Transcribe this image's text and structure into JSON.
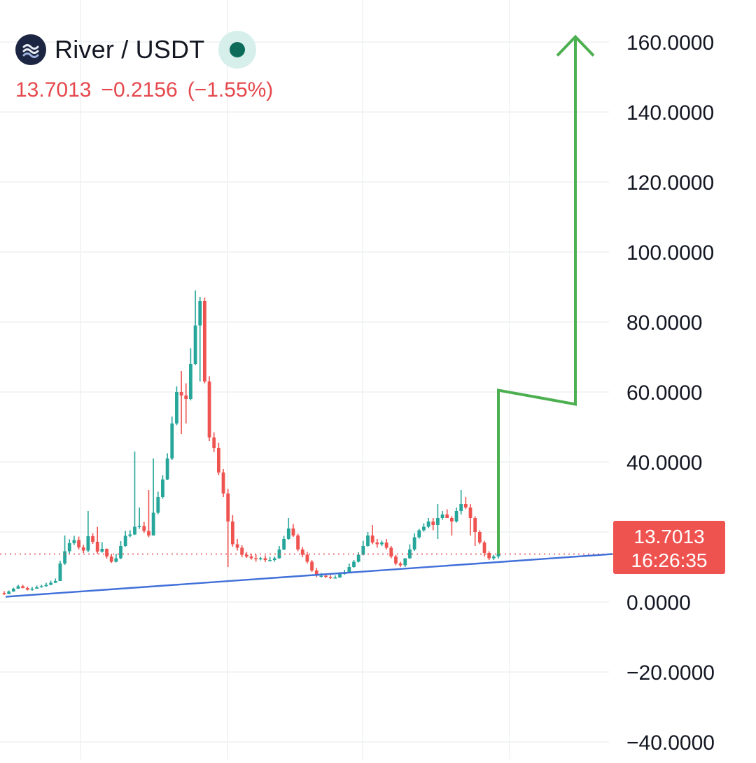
{
  "header": {
    "pair": "River / USDT",
    "price": "13.7013",
    "change": "−0.2156",
    "change_pct": "(−1.55%)"
  },
  "last_price_tag": {
    "price": "13.7013",
    "countdown": "16:26:35"
  },
  "colors": {
    "up": "#26a69a",
    "down": "#ef5350",
    "trendline": "#3f6fd8",
    "projection": "#4caf50",
    "price_line": "#e5484d",
    "grid": "#eef0f3",
    "status": "#0d6b5a",
    "logo_bg": "#1c2541"
  },
  "icons": {
    "logo": "river-wave-icon",
    "status": "market-status-dot-icon"
  },
  "chart_data": {
    "type": "candlestick",
    "title": "River / USDT",
    "ylim": [
      -45,
      168
    ],
    "yticks": [
      160,
      140,
      120,
      100,
      80,
      60,
      40,
      20,
      0,
      -20,
      -40
    ],
    "ytick_labels": [
      "160.0000",
      "140.0000",
      "120.0000",
      "100.0000",
      "80.0000",
      "60.0000",
      "40.0000",
      "20.0000",
      "0.0000",
      "−20.0000",
      "−40.0000"
    ],
    "grid": true,
    "last_price": 13.7013,
    "series": {
      "open": [
        2.6,
        2.3,
        3.0,
        3.8,
        4.5,
        4.0,
        3.5,
        3.8,
        4.2,
        4.5,
        4.9,
        5.5,
        6.0,
        11.0,
        14.5,
        16.8,
        17.7,
        15.6,
        14.7,
        18.8,
        17.2,
        14.4,
        15.2,
        13.0,
        11.5,
        12.5,
        16.0,
        18.9,
        19.3,
        21.5,
        21.7,
        20.3,
        19.0,
        25.5,
        30.0,
        35.0,
        41.0,
        51.0,
        60.0,
        59.0,
        58.0,
        68.0,
        79.0,
        86.0,
        63.0,
        47.0,
        44.0,
        37.0,
        31.0,
        23.0,
        16.5,
        15.5,
        13.5,
        13.0,
        12.5,
        12.2,
        12.5,
        12.0,
        12.0,
        12.5,
        15.0,
        18.0,
        21.0,
        19.0,
        15.0,
        13.5,
        11.5,
        9.0,
        7.5,
        7.5,
        7.2,
        7.0,
        7.0,
        8.0,
        8.5,
        10.0,
        11.5,
        13.5,
        16.0,
        19.0,
        17.0,
        16.5,
        17.0,
        15.5,
        13.0,
        11.0,
        10.5,
        12.5,
        15.0,
        18.5,
        20.5,
        21.5,
        23.0,
        22.0,
        24.0,
        25.0,
        24.0,
        23.0,
        26.0,
        28.0,
        27.0,
        24.0,
        20.0,
        17.0,
        14.0,
        12.5,
        13.0
      ],
      "close": [
        2.3,
        3.0,
        3.8,
        4.5,
        4.0,
        3.5,
        3.8,
        4.2,
        4.5,
        4.9,
        5.5,
        6.0,
        11.0,
        14.5,
        16.8,
        17.7,
        15.6,
        14.7,
        18.8,
        17.2,
        14.4,
        15.2,
        13.0,
        11.5,
        12.5,
        16.0,
        18.9,
        19.3,
        21.5,
        21.7,
        20.3,
        19.0,
        25.5,
        30.0,
        35.0,
        41.0,
        51.0,
        60.0,
        59.0,
        58.0,
        68.0,
        79.0,
        86.0,
        63.0,
        47.0,
        44.0,
        37.0,
        31.0,
        23.0,
        16.5,
        15.5,
        13.5,
        13.0,
        12.5,
        12.2,
        12.5,
        12.0,
        12.0,
        12.5,
        15.0,
        18.0,
        21.0,
        19.0,
        15.0,
        13.5,
        11.5,
        9.0,
        7.5,
        7.5,
        7.2,
        7.0,
        7.0,
        8.0,
        8.5,
        10.0,
        11.5,
        13.5,
        16.0,
        19.0,
        17.0,
        16.5,
        17.0,
        15.5,
        13.0,
        11.0,
        10.5,
        12.5,
        15.0,
        18.5,
        20.5,
        21.5,
        23.0,
        22.0,
        24.0,
        25.0,
        24.0,
        23.0,
        26.0,
        28.0,
        27.0,
        24.0,
        20.0,
        17.0,
        14.0,
        12.5,
        13.0,
        13.7
      ],
      "high": [
        3.1,
        3.3,
        4.1,
        4.9,
        4.9,
        4.4,
        4.3,
        4.7,
        4.9,
        5.5,
        6.1,
        6.7,
        11.8,
        19.0,
        17.9,
        18.9,
        18.7,
        16.3,
        26.0,
        19.6,
        21.5,
        17.1,
        15.3,
        13.8,
        13.8,
        17.4,
        20.3,
        20.5,
        43.0,
        27.0,
        22.9,
        32.0,
        41.0,
        31.5,
        36.2,
        42.5,
        53.0,
        61.6,
        66.0,
        62.5,
        72.5,
        89.0,
        87.2,
        87.0,
        64.5,
        48.5,
        45.5,
        38.0,
        32.3,
        24.8,
        18.0,
        16.2,
        14.3,
        13.8,
        13.6,
        12.9,
        13.3,
        12.9,
        13.0,
        16.0,
        18.9,
        24.0,
        22.3,
        19.5,
        15.7,
        14.3,
        12.0,
        9.7,
        8.3,
        8.1,
        7.7,
        7.6,
        8.5,
        9.2,
        11.0,
        12.0,
        14.2,
        17.5,
        20.0,
        22.0,
        18.0,
        17.5,
        18.0,
        16.0,
        13.5,
        11.5,
        12.5,
        16.5,
        19.6,
        20.9,
        22.5,
        24.0,
        24.0,
        28.0,
        26.0,
        26.5,
        24.5,
        27.0,
        32.0,
        30.0,
        28.0,
        24.5,
        20.5,
        17.5,
        14.5,
        13.5,
        14.5
      ],
      "low": [
        2.0,
        2.2,
        2.9,
        3.8,
        3.9,
        3.3,
        3.2,
        3.8,
        4.1,
        4.4,
        4.8,
        5.4,
        6.0,
        10.6,
        13.9,
        16.3,
        15.0,
        14.0,
        14.2,
        16.6,
        13.8,
        14.1,
        12.4,
        11.2,
        11.3,
        12.2,
        15.8,
        18.5,
        19.1,
        20.9,
        19.8,
        18.5,
        19.0,
        25.1,
        29.5,
        34.8,
        40.6,
        50.5,
        48.0,
        51.0,
        57.6,
        67.7,
        63.0,
        62.5,
        46.0,
        42.8,
        36.2,
        30.0,
        10.0,
        15.8,
        14.7,
        12.8,
        12.6,
        12.1,
        11.5,
        11.9,
        11.4,
        11.6,
        11.5,
        12.4,
        14.8,
        17.8,
        18.6,
        14.5,
        12.8,
        11.0,
        8.6,
        7.1,
        7.0,
        6.8,
        6.6,
        6.7,
        6.9,
        7.8,
        8.3,
        9.8,
        11.3,
        13.3,
        15.8,
        16.5,
        15.5,
        16.0,
        15.0,
        12.5,
        10.5,
        10.0,
        10.0,
        12.3,
        14.6,
        18.1,
        20.1,
        21.1,
        20.5,
        18.0,
        23.5,
        24.0,
        19.0,
        22.7,
        25.0,
        26.5,
        19.0,
        16.0,
        16.5,
        13.0,
        12.0,
        12.0,
        12.4
      ]
    },
    "overlays": {
      "trendline_y": [
        1.5,
        13.7
      ],
      "projection_path_y": [
        13.7,
        60.5,
        56.5,
        161.5
      ]
    }
  }
}
